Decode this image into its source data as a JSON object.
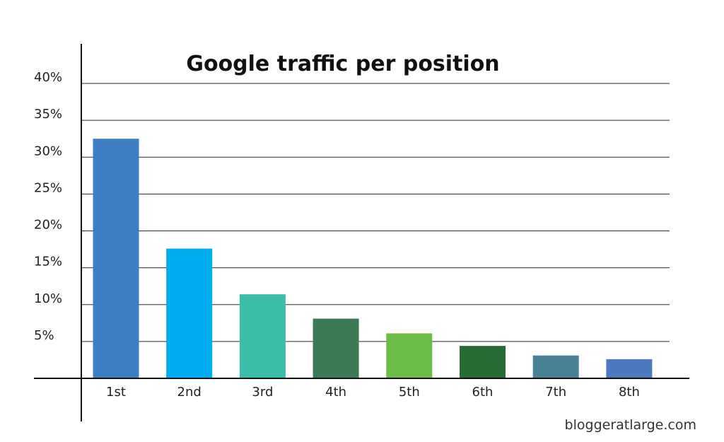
{
  "chart_data": {
    "type": "bar",
    "title": "Google traffic per position",
    "categories": [
      "1st",
      "2nd",
      "3rd",
      "4th",
      "5th",
      "6th",
      "7th",
      "8th"
    ],
    "values": [
      32.5,
      17.6,
      11.4,
      8.1,
      6.1,
      4.4,
      3.1,
      2.6
    ],
    "bar_colors": [
      "#3d7ec4",
      "#00aeef",
      "#3bbda9",
      "#3b7a55",
      "#6bbd47",
      "#286b35",
      "#4b8196",
      "#4f79bf"
    ],
    "y_ticks": [
      "5%",
      "10%",
      "15%",
      "20%",
      "25%",
      "30%",
      "35%",
      "40%"
    ],
    "ylim": [
      0,
      40
    ],
    "grid": true,
    "legend": "none",
    "source": "bloggeratlarge.com"
  }
}
